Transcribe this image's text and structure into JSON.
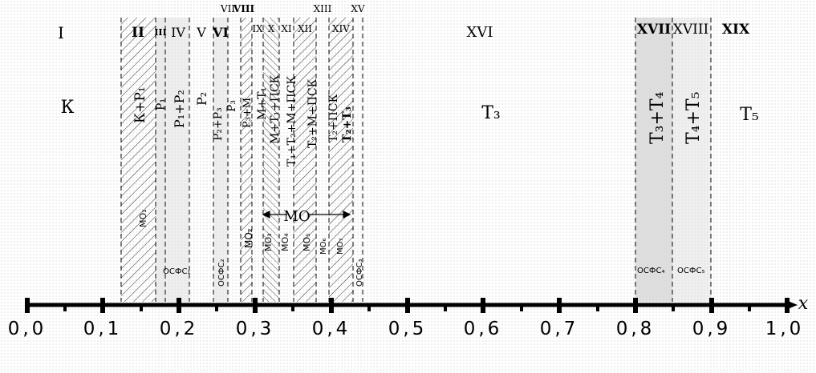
{
  "axis": {
    "x_label": "x",
    "ticks": [
      "0,0",
      "0,1",
      "0,2",
      "0,3",
      "0,4",
      "0,5",
      "0,6",
      "0,7",
      "0,8",
      "0,9",
      "1,0"
    ]
  },
  "regions": [
    {
      "numeral": "I",
      "phase": "К"
    },
    {
      "numeral": "II",
      "phase": "К+Р₁"
    },
    {
      "numeral": "III",
      "phase": "Р₁"
    },
    {
      "numeral": "IV",
      "phase": "Р₁+Р₂"
    },
    {
      "numeral": "V",
      "phase": "Р₂"
    },
    {
      "numeral": "VI",
      "phase": "Р₂+Р₃"
    },
    {
      "numeral": "VII",
      "phase": "Р₃"
    },
    {
      "numeral": "VIII",
      "phase": "Р₃+М"
    },
    {
      "numeral": "IX",
      "phase": "М+Т₁"
    },
    {
      "numeral": "X",
      "phase": "М+Т₁+ПСК"
    },
    {
      "numeral": "XI",
      "phase": "Т₁+Т₂+М+ПСК"
    },
    {
      "numeral": "XII",
      "phase": "Т₂+М+ПСК"
    },
    {
      "numeral": "XIII",
      "phase": "Т₂+ПСК"
    },
    {
      "numeral": "XIV",
      "phase": "Т₂+Т₃"
    },
    {
      "numeral": "XV",
      "phase": ""
    },
    {
      "numeral": "XVI",
      "phase": "Т₃"
    },
    {
      "numeral": "XVII",
      "phase": "Т₃+Т₄"
    },
    {
      "numeral": "XVIII",
      "phase": "Т₄+Т₅"
    },
    {
      "numeral": "XIX",
      "phase": "Т₅"
    }
  ],
  "compositions": {
    "mo1": "МО₁",
    "mo2": "МО₂",
    "mo3": "МО₃",
    "mo4": "МО₄",
    "mo5": "МО₅",
    "mo6": "МО₆",
    "mo7": "МО₇",
    "mo_span": "МО",
    "osfs1": "ОСФС₁",
    "osfs2": "ОСФС₂",
    "osfs3": "ОСФС₃",
    "osfs4": "ОСФС₄",
    "osfs5": "ОСФС₅"
  },
  "colors": {
    "axis": "#000000",
    "hatch": "#000000",
    "grey_band": "#d8d8d8"
  }
}
